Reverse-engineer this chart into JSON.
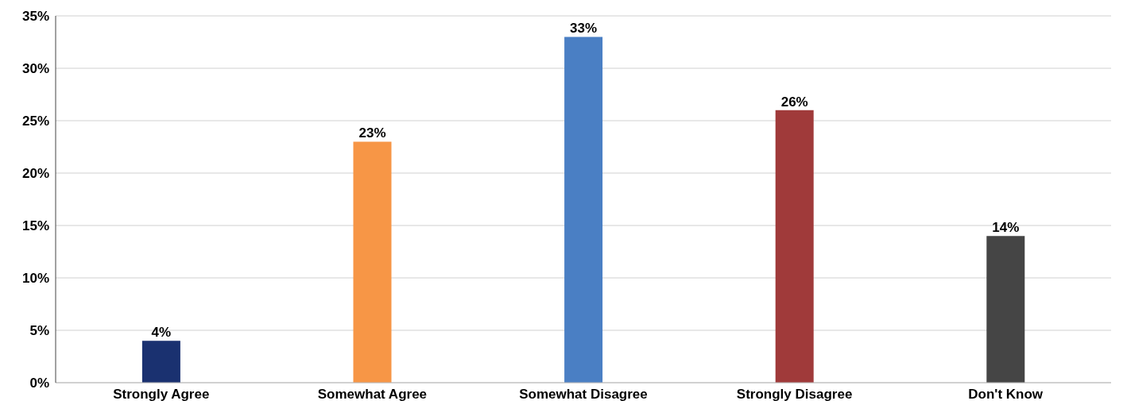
{
  "chart_data": {
    "type": "bar",
    "categories": [
      "Strongly Agree",
      "Somewhat Agree",
      "Somewhat Disagree",
      "Strongly Disagree",
      "Don't Know"
    ],
    "values": [
      4,
      23,
      33,
      26,
      14
    ],
    "value_labels": [
      "4%",
      "23%",
      "33%",
      "26%",
      "14%"
    ],
    "colors": [
      "#1a3170",
      "#f79646",
      "#4a7fc4",
      "#a03a3a",
      "#454545"
    ],
    "ylim": [
      0,
      35
    ],
    "yticks": [
      {
        "value": 0,
        "label": "0%"
      },
      {
        "value": 5,
        "label": "5%"
      },
      {
        "value": 10,
        "label": "10%"
      },
      {
        "value": 15,
        "label": "15%"
      },
      {
        "value": 20,
        "label": "20%"
      },
      {
        "value": 25,
        "label": "25%"
      },
      {
        "value": 30,
        "label": "30%"
      },
      {
        "value": 35,
        "label": "35%"
      }
    ],
    "grid": "y"
  }
}
